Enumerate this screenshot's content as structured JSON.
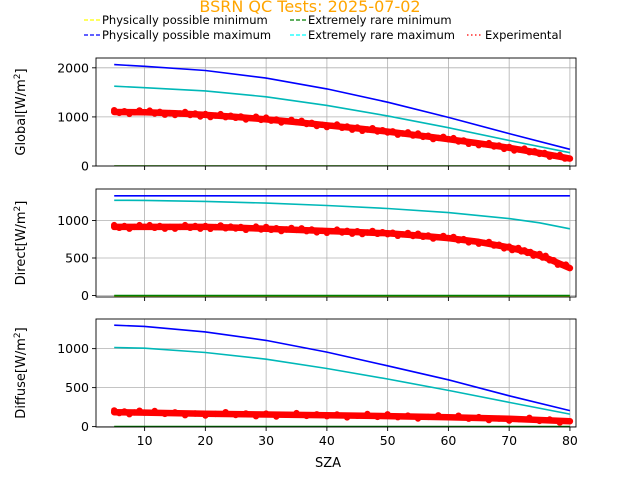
{
  "chart_data": {
    "type": "line",
    "title": "BSRN QC Tests: 2025-07-02",
    "title_color": "#ffa500",
    "xlabel": "SZA",
    "x_ticks": [
      10,
      20,
      30,
      40,
      50,
      60,
      70,
      80
    ],
    "xlim": [
      2,
      81
    ],
    "grid": true,
    "legend": {
      "placement": "top",
      "entries": [
        {
          "label": "Physically possible minimum",
          "color": "#ffff00",
          "style": "dashed"
        },
        {
          "label": "Extremely rare minimum",
          "color": "#008000",
          "style": "dashed"
        },
        {
          "label": "Physically possible maximum",
          "color": "#0000ff",
          "style": "dashed"
        },
        {
          "label": "Extremely rare maximum",
          "color": "#00ffff",
          "style": "dashed"
        },
        {
          "label": "Experimental",
          "color": "#ff0000",
          "style": "dotted"
        }
      ]
    },
    "panels": [
      {
        "ylabel": "Global",
        "yunit": "[W/m",
        "yunit_sup": "2",
        "yunit_end": "]",
        "ylim": [
          0,
          2200
        ],
        "y_ticks": [
          0,
          1000,
          2000
        ],
        "series": [
          {
            "name": "Physically possible minimum",
            "color": "#ffff00",
            "x": [
              5,
              80
            ],
            "y": [
              -4,
              -4
            ]
          },
          {
            "name": "Extremely rare minimum",
            "color": "#008000",
            "x": [
              5,
              80
            ],
            "y": [
              -2,
              -2
            ]
          },
          {
            "name": "Physically possible maximum",
            "color": "#0000ff",
            "x": [
              5,
              10,
              20,
              30,
              40,
              50,
              60,
              70,
              80
            ],
            "y": [
              2065,
              2030,
              1945,
              1790,
              1570,
              1300,
              990,
              660,
              340
            ]
          },
          {
            "name": "Extremely rare maximum",
            "color": "#00b8b8",
            "x": [
              5,
              10,
              20,
              30,
              40,
              50,
              60,
              70,
              80
            ],
            "y": [
              1625,
              1595,
              1530,
              1410,
              1235,
              1020,
              780,
              520,
              270
            ]
          },
          {
            "name": "Experimental",
            "color": "#ff0000",
            "marker": true,
            "x": [
              5,
              10,
              15,
              20,
              25,
              30,
              35,
              40,
              45,
              50,
              55,
              60,
              65,
              70,
              75,
              80
            ],
            "y": [
              1100,
              1095,
              1075,
              1040,
              1000,
              950,
              895,
              830,
              765,
              700,
              625,
              545,
              460,
              370,
              265,
              150
            ]
          }
        ]
      },
      {
        "ylabel": "Direct",
        "yunit": "[W/m",
        "yunit_sup": "2",
        "yunit_end": "]",
        "ylim": [
          -20,
          1420
        ],
        "y_ticks": [
          0,
          500,
          1000
        ],
        "series": [
          {
            "name": "Physically possible minimum",
            "color": "#ffff00",
            "x": [
              5,
              80
            ],
            "y": [
              -4,
              -4
            ]
          },
          {
            "name": "Extremely rare minimum",
            "color": "#008000",
            "x": [
              5,
              80
            ],
            "y": [
              0,
              0
            ]
          },
          {
            "name": "Physically possible maximum",
            "color": "#0000ff",
            "x": [
              5,
              80
            ],
            "y": [
              1330,
              1330
            ]
          },
          {
            "name": "Extremely rare maximum",
            "color": "#00b8b8",
            "x": [
              5,
              10,
              20,
              30,
              40,
              50,
              60,
              70,
              75,
              80
            ],
            "y": [
              1270,
              1268,
              1255,
              1232,
              1200,
              1160,
              1105,
              1025,
              970,
              890
            ]
          },
          {
            "name": "Experimental",
            "color": "#ff0000",
            "marker": true,
            "x": [
              5,
              10,
              15,
              20,
              25,
              30,
              35,
              40,
              45,
              50,
              55,
              60,
              65,
              70,
              73,
              76,
              80
            ],
            "y": [
              915,
              915,
              915,
              915,
              905,
              890,
              875,
              860,
              845,
              830,
              800,
              765,
              715,
              640,
              580,
              505,
              365
            ]
          }
        ]
      },
      {
        "ylabel": "Diffuse",
        "yunit": "[W/m",
        "yunit_sup": "2",
        "yunit_end": "]",
        "ylim": [
          -5,
          1380
        ],
        "y_ticks": [
          0,
          500,
          1000
        ],
        "series": [
          {
            "name": "Physically possible minimum",
            "color": "#ffff00",
            "x": [
              5,
              80
            ],
            "y": [
              -3,
              -3
            ]
          },
          {
            "name": "Extremely rare minimum",
            "color": "#008000",
            "x": [
              5,
              80
            ],
            "y": [
              0,
              0
            ]
          },
          {
            "name": "Physically possible maximum",
            "color": "#0000ff",
            "x": [
              5,
              10,
              20,
              30,
              40,
              50,
              60,
              70,
              80
            ],
            "y": [
              1300,
              1285,
              1215,
              1105,
              955,
              780,
              600,
              395,
              205
            ]
          },
          {
            "name": "Extremely rare maximum",
            "color": "#00b8b8",
            "x": [
              5,
              10,
              20,
              30,
              40,
              50,
              60,
              70,
              80
            ],
            "y": [
              1015,
              1005,
              950,
              865,
              745,
              610,
              465,
              310,
              160
            ]
          },
          {
            "name": "Experimental",
            "color": "#ff0000",
            "marker": true,
            "x": [
              5,
              10,
              20,
              30,
              40,
              50,
              60,
              70,
              80
            ],
            "y": [
              185,
              180,
              165,
              155,
              145,
              135,
              120,
              100,
              70
            ]
          }
        ]
      }
    ]
  }
}
